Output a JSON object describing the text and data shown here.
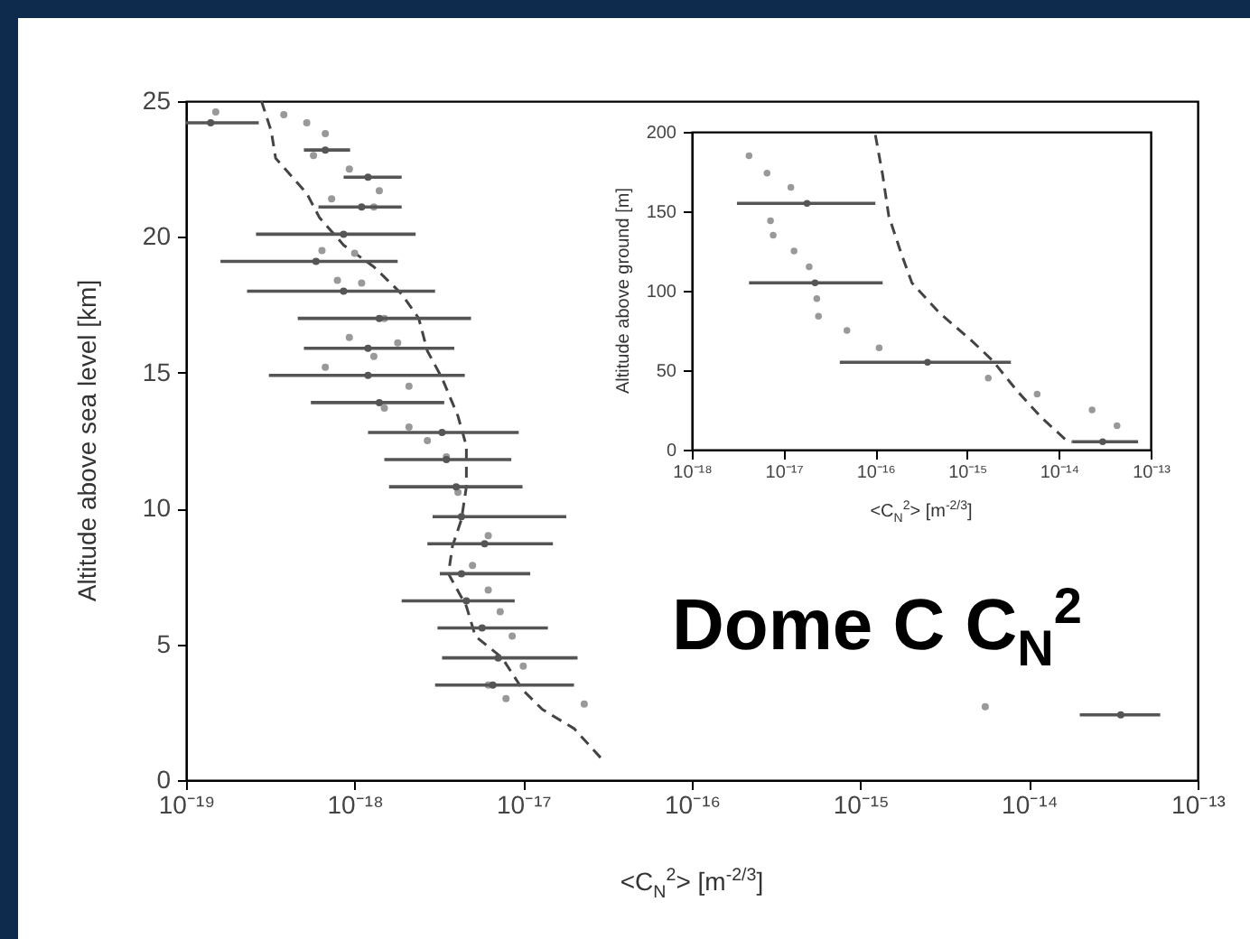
{
  "chart_data": [
    {
      "type": "scatter",
      "title": "Dome C C$_{N}$$^{2}$",
      "xlabel": "<C$_{N}$$^{2}$> [m$^{-2/3}$]",
      "ylabel": "Altitude above sea level [km]",
      "log": "x",
      "xlim": [
        1e-19,
        1e-13
      ],
      "xticks": [
        {
          "value": 1e-19,
          "label": "10⁻¹⁹"
        },
        {
          "value": 1e-18,
          "label": "10⁻¹⁸"
        },
        {
          "value": 1e-17,
          "label": "10⁻¹⁷"
        },
        {
          "value": 1e-16,
          "label": "10⁻¹⁶"
        },
        {
          "value": 1e-15,
          "label": "10⁻¹⁵"
        },
        {
          "value": 1e-14,
          "label": "10⁻¹⁴"
        },
        {
          "value": 1e-13,
          "label": "10⁻¹³"
        }
      ],
      "ylim": [
        0,
        25
      ],
      "yticks": [
        0,
        5,
        10,
        15,
        20,
        25
      ],
      "series": [
        {
          "type": "line",
          "line_style": "dashed",
          "color": "#444444",
          "x": [
            2.8e-19,
            3.2e-19,
            3.4e-19,
            5.2e-19,
            6.2e-19,
            8.6e-19,
            1.3e-18,
            1.9e-18,
            2.4e-18,
            2.7e-18,
            3.3e-18,
            4.1e-18,
            4.6e-18,
            4.6e-18,
            4.3e-18,
            3.8e-18,
            3.6e-18,
            4.6e-18,
            5.2e-18,
            7.5e-18,
            1e-17,
            1.3e-17,
            2e-17,
            2.9e-17
          ],
          "values": [
            25,
            23.9,
            22.9,
            21.6,
            20.7,
            19.7,
            18.9,
            17.9,
            17.0,
            15.8,
            14.8,
            13.4,
            12.3,
            10.8,
            9.6,
            8.6,
            7.6,
            6.4,
            5.3,
            4.5,
            3.3,
            2.6,
            1.9,
            0.8
          ]
        },
        {
          "type": "scatter",
          "marker": "circle",
          "color": "#999999",
          "x": [
            1.5e-19,
            3.8e-19,
            5.2e-19,
            6.7e-19,
            5.7e-19,
            9.3e-19,
            1.4e-18,
            7.3e-19,
            1.3e-18,
            6.4e-19,
            1e-18,
            7.9e-19,
            1.1e-18,
            1.5e-18,
            9.3e-19,
            1.8e-18,
            1.3e-18,
            6.7e-19,
            2.1e-18,
            1.5e-18,
            2.1e-18,
            2.7e-18,
            3.5e-18,
            4.1e-18,
            6.2e-18,
            5e-18,
            6.2e-18,
            7.3e-18,
            8.6e-18,
            1e-17,
            6.2e-18,
            7.9e-18,
            2.3e-17,
            5.5e-15
          ],
          "values": [
            24.6,
            24.5,
            24.2,
            23.8,
            23.0,
            22.5,
            21.7,
            21.4,
            21.1,
            19.5,
            19.4,
            18.4,
            18.3,
            17.0,
            16.3,
            16.1,
            15.6,
            15.2,
            14.5,
            13.7,
            13.0,
            12.5,
            11.9,
            10.6,
            9.0,
            7.9,
            7.0,
            6.2,
            5.3,
            4.2,
            3.5,
            3.0,
            2.8,
            2.7
          ]
        },
        {
          "type": "scatter",
          "marker": "circle",
          "color": "#555555",
          "x": [
            1.4e-19,
            6.7e-19,
            1.2e-18,
            1.1e-18,
            8.6e-19,
            5.9e-19,
            8.6e-19,
            1.4e-18,
            1.2e-18,
            1.2e-18,
            1.4e-18,
            3.3e-18,
            3.5e-18,
            4e-18,
            4.3e-18,
            5.9e-18,
            4.3e-18,
            4.6e-18,
            5.7e-18,
            7.1e-18,
            6.6e-18,
            3.5e-14
          ],
          "values": [
            24.2,
            23.2,
            22.2,
            21.1,
            20.1,
            19.1,
            18.0,
            17.0,
            15.9,
            14.9,
            13.9,
            12.8,
            11.8,
            10.8,
            9.7,
            8.7,
            7.6,
            6.6,
            5.6,
            4.5,
            3.5,
            2.4
          ],
          "xerrors": [
            [
              1e-19,
              2.7e-19
            ],
            [
              5e-19,
              9.4e-19
            ],
            [
              8.6e-19,
              1.9e-18
            ],
            [
              6.1e-19,
              1.9e-18
            ],
            [
              2.6e-19,
              2.3e-18
            ],
            [
              1.6e-19,
              1.8e-18
            ],
            [
              2.3e-19,
              3e-18
            ],
            [
              4.6e-19,
              4.9e-18
            ],
            [
              5e-19,
              3.9e-18
            ],
            [
              3.1e-19,
              4.5e-18
            ],
            [
              5.5e-19,
              3.4e-18
            ],
            [
              1.2e-18,
              9.4e-18
            ],
            [
              1.5e-18,
              8.5e-18
            ],
            [
              1.6e-18,
              9.9e-18
            ],
            [
              2.9e-18,
              1.8e-17
            ],
            [
              2.7e-18,
              1.5e-17
            ],
            [
              3.2e-18,
              1.1e-17
            ],
            [
              1.9e-18,
              8.9e-18
            ],
            [
              3.1e-18,
              1.4e-17
            ],
            [
              3.3e-18,
              2.1e-17
            ],
            [
              3e-18,
              2e-17
            ],
            [
              2e-14,
              6e-14
            ]
          ]
        }
      ]
    },
    {
      "type": "scatter",
      "xlabel": "<C$_{N}$$^{2}$> [m$^{-2/3}$]",
      "ylabel": "Altitude above ground [m]",
      "log": "x",
      "xlim": [
        1e-18,
        1e-13
      ],
      "xticks": [
        {
          "value": 1e-18,
          "label": "10⁻¹⁸"
        },
        {
          "value": 1e-17,
          "label": "10⁻¹⁷"
        },
        {
          "value": 1e-16,
          "label": "10⁻¹⁶"
        },
        {
          "value": 1e-15,
          "label": "10⁻¹⁵"
        },
        {
          "value": 1e-14,
          "label": "10⁻¹⁴"
        },
        {
          "value": 1e-13,
          "label": "10⁻¹³"
        }
      ],
      "ylim": [
        0,
        200
      ],
      "yticks": [
        0,
        50,
        100,
        150,
        200
      ],
      "series": [
        {
          "type": "line",
          "line_style": "dashed",
          "color": "#444444",
          "x": [
            1e-16,
            1.2e-16,
            1.4e-16,
            1.9e-16,
            2.5e-16,
            5e-16,
            1.1e-15,
            1.9e-15,
            3.5e-15,
            6.5e-15,
            1.2e-14,
            1.4e-14
          ],
          "values": [
            198,
            173,
            147,
            124,
            105,
            86,
            69,
            56,
            37,
            20,
            6,
            5
          ]
        },
        {
          "type": "scatter",
          "marker": "circle",
          "color": "#999999",
          "x": [
            4.2e-18,
            6.6e-18,
            1.2e-17,
            7.2e-18,
            7.7e-18,
            1.3e-17,
            1.9e-17,
            2.3e-17,
            2.4e-17,
            4.9e-17,
            1.1e-16,
            1.7e-15,
            5.8e-15,
            2.3e-14,
            4.3e-14
          ],
          "values": [
            185,
            174,
            165,
            144,
            135,
            125,
            115,
            95,
            84,
            75,
            64,
            45,
            35,
            25,
            15
          ]
        },
        {
          "type": "scatter",
          "marker": "circle",
          "color": "#555555",
          "x": [
            1.8e-17,
            2.2e-17,
            3.7e-16,
            3e-14
          ],
          "values": [
            155,
            105,
            55,
            5
          ],
          "xerrors": [
            [
              3.1e-18,
              1e-16
            ],
            [
              4.2e-18,
              1.2e-16
            ],
            [
              4.1e-17,
              3e-15
            ],
            [
              1.4e-14,
              7.3e-14
            ]
          ]
        }
      ]
    }
  ]
}
